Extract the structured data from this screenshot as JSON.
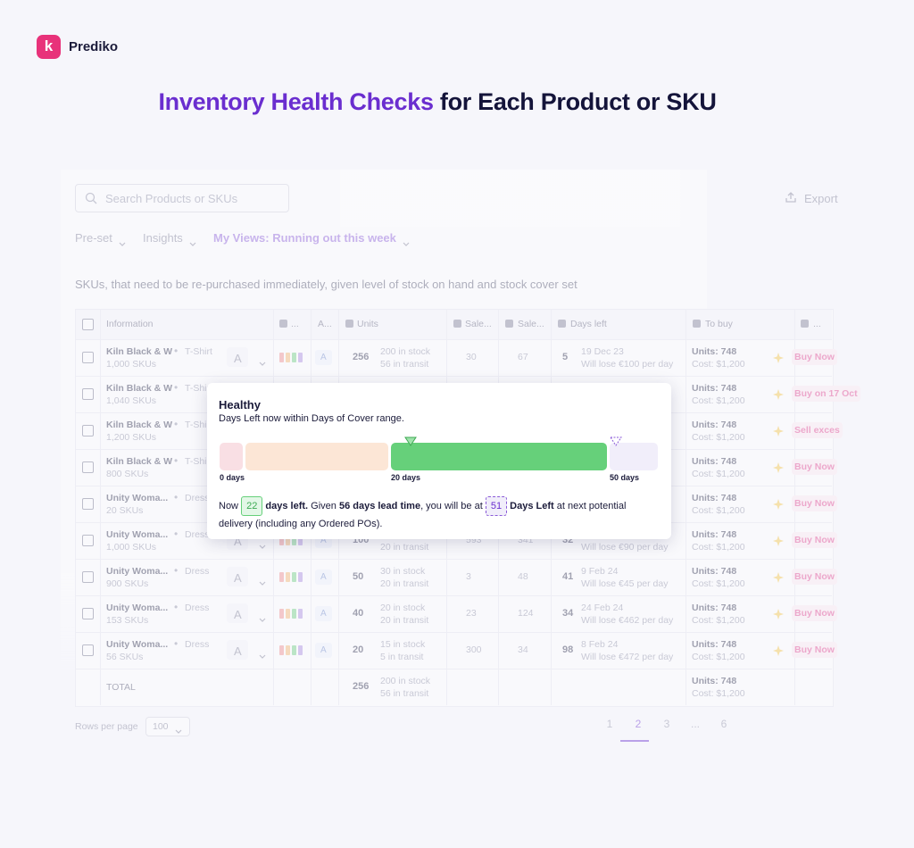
{
  "brand": "Prediko",
  "headline": {
    "highlight": "Inventory Health Checks",
    "rest": "for Each Product or SKU"
  },
  "toolbar": {
    "search_placeholder": "Search Products or SKUs",
    "export": "Export"
  },
  "filters": [
    "Pre-set",
    "Insights",
    "My Views: Running out this week"
  ],
  "description": "SKUs, that need to be re-purchased immediately, given level of stock on hand and stock cover set",
  "table": {
    "columns": [
      "Information",
      "...",
      "A...",
      "Units",
      "Sale...",
      "Sale...",
      "Days left",
      "To buy",
      "..."
    ],
    "rows": [
      {
        "name": "Kiln Black & W",
        "type": "T-Shirt",
        "skus": "1,000 SKUs",
        "abc": "A",
        "units": 256,
        "in_stock": "200 in stock",
        "in_transit": "56 in transit",
        "sales_1": 30,
        "sales_2": 67,
        "days_left": 5,
        "date": "19 Dec 23",
        "loss": "Will lose €100 per day",
        "to_buy_units": "Units: 748",
        "to_buy_cost": "Cost: $1,200",
        "action": "Buy Now"
      },
      {
        "name": "Kiln Black & W",
        "type": "T-Shirt",
        "skus": "1,040 SKUs",
        "to_buy_units": "Units: 748",
        "to_buy_cost": "Cost: $1,200",
        "action": "Buy on 17 Oct"
      },
      {
        "name": "Kiln Black & W",
        "type": "T-Shirt",
        "skus": "1,200 SKUs",
        "to_buy_units": "Units: 748",
        "to_buy_cost": "Cost: $1,200",
        "action": "Sell exces"
      },
      {
        "name": "Kiln Black & W",
        "type": "T-Shirt",
        "skus": "800 SKUs",
        "to_buy_units": "Units: 748",
        "to_buy_cost": "Cost: $1,200",
        "action": "Buy Now"
      },
      {
        "name": "Unity Woma...",
        "type": "Dress",
        "skus": "20 SKUs",
        "to_buy_units": "Units: 748",
        "to_buy_cost": "Cost: $1,200",
        "action": "Buy Now"
      },
      {
        "name": "Unity Woma...",
        "type": "Dress",
        "skus": "1,000 SKUs",
        "abc": "A",
        "units": 100,
        "in_transit": "20 in transit",
        "sales_1": 593,
        "sales_2": 341,
        "days_left": 32,
        "loss": "Will lose €90 per day",
        "to_buy_units": "Units: 748",
        "to_buy_cost": "Cost: $1,200",
        "action": "Buy Now"
      },
      {
        "name": "Unity Woma...",
        "type": "Dress",
        "skus": "900 SKUs",
        "abc": "A",
        "units": 50,
        "in_stock": "30 in stock",
        "in_transit": "20 in transit",
        "sales_1": 3,
        "sales_2": 48,
        "days_left": 41,
        "date": "9 Feb 24",
        "loss": "Will lose €45 per day",
        "to_buy_units": "Units: 748",
        "to_buy_cost": "Cost: $1,200",
        "action": "Buy Now"
      },
      {
        "name": "Unity Woma...",
        "type": "Dress",
        "skus": "153 SKUs",
        "abc": "A",
        "units": 40,
        "in_stock": "20 in stock",
        "in_transit": "20 in transit",
        "sales_1": 23,
        "sales_2": 124,
        "days_left": 34,
        "date": "24 Feb 24",
        "loss": "Will lose €462 per day",
        "to_buy_units": "Units: 748",
        "to_buy_cost": "Cost: $1,200",
        "action": "Buy Now"
      },
      {
        "name": "Unity Woma...",
        "type": "Dress",
        "skus": "56 SKUs",
        "abc": "A",
        "units": 20,
        "in_stock": "15 in stock",
        "in_transit": "5 in transit",
        "sales_1": 300,
        "sales_2": 34,
        "days_left": 98,
        "date": "8 Feb 24",
        "loss": "Will lose €472 per day",
        "to_buy_units": "Units: 748",
        "to_buy_cost": "Cost: $1,200",
        "action": "Buy Now"
      }
    ],
    "total": {
      "label": "TOTAL",
      "units": 256,
      "in_stock": "200 in stock",
      "in_transit": "56 in transit",
      "to_buy_units": "Units: 748",
      "to_buy_cost": "Cost: $1,200"
    }
  },
  "tooltip": {
    "title": "Healthy",
    "subtitle": "Days Left now within Days of Cover range.",
    "scale_labels": [
      "0 days",
      "20 days",
      "50 days"
    ],
    "sentence": {
      "now": "Now",
      "days_left_value": 22,
      "days_left": "days left.",
      "given": "Given",
      "lead_time": "56 days lead time",
      "at": ", you will be at",
      "future_value": 51,
      "future_label": "Days Left",
      "tail": "at next potential delivery (including any Ordered POs)."
    }
  },
  "pagination": {
    "rows_per_page_label": "Rows per page",
    "rows_per_page": 100,
    "pages": [
      1,
      2,
      3,
      "...",
      6
    ],
    "active_page": 2
  }
}
